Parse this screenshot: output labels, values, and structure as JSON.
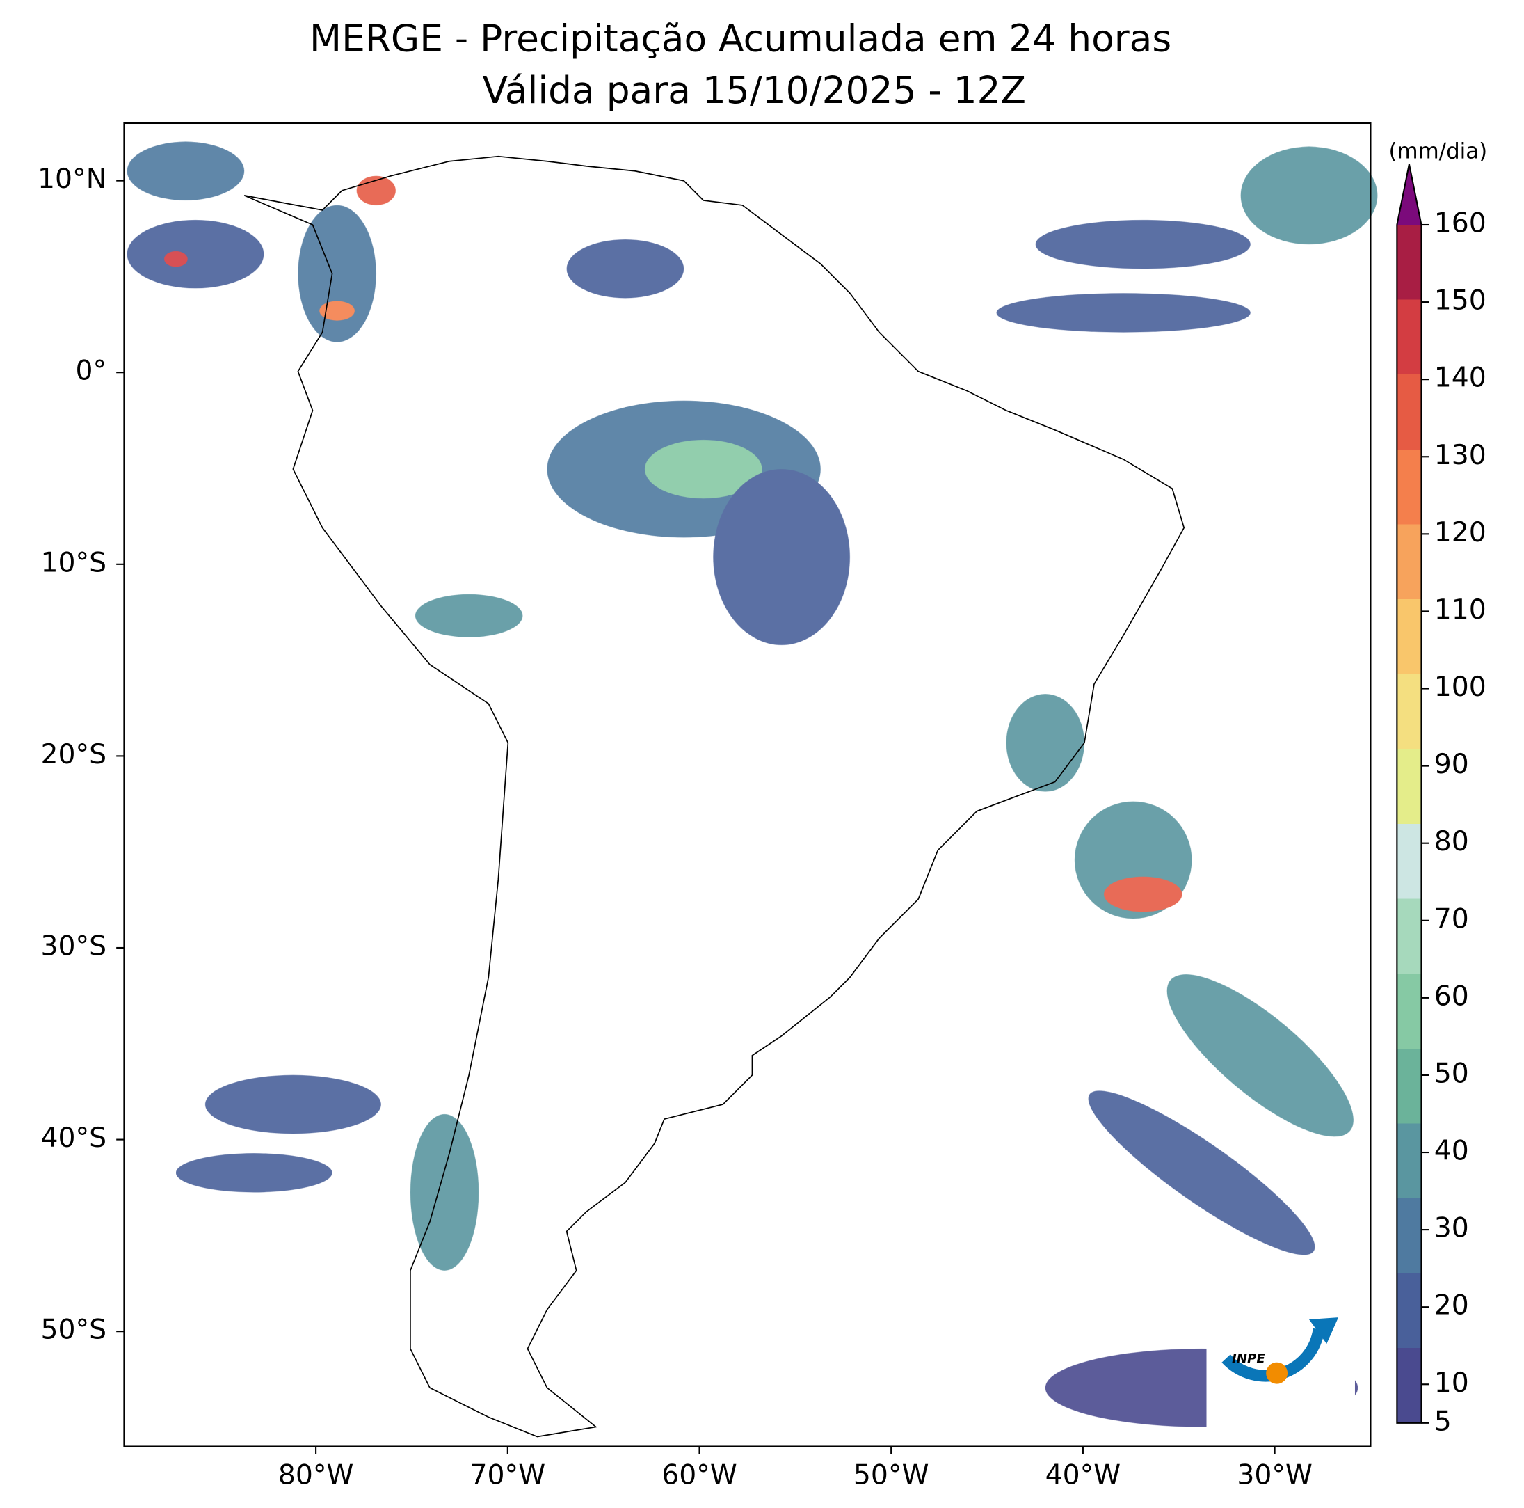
{
  "title": "MERGE - Precipitação Acumulada em 24 horas",
  "subtitle": "Válida para 15/10/2025 - 12Z",
  "map": {
    "xlim": [
      -90,
      -25
    ],
    "ylim": [
      -56,
      13
    ],
    "xticks": [
      {
        "value": -80,
        "label": "80°W"
      },
      {
        "value": -70,
        "label": "70°W"
      },
      {
        "value": -60,
        "label": "60°W"
      },
      {
        "value": -50,
        "label": "50°W"
      },
      {
        "value": -40,
        "label": "40°W"
      },
      {
        "value": -30,
        "label": "30°W"
      }
    ],
    "yticks": [
      {
        "value": 10,
        "label": "10°N"
      },
      {
        "value": 0,
        "label": "0°"
      },
      {
        "value": -10,
        "label": "10°S"
      },
      {
        "value": -20,
        "label": "20°S"
      },
      {
        "value": -30,
        "label": "30°S"
      },
      {
        "value": -40,
        "label": "40°S"
      },
      {
        "value": -50,
        "label": "50°S"
      }
    ]
  },
  "colorbar": {
    "label": "(mm/dia)",
    "lim": [
      5,
      160
    ],
    "ticks": [
      5,
      10,
      20,
      30,
      40,
      50,
      60,
      70,
      80,
      90,
      100,
      110,
      120,
      130,
      140,
      150,
      160
    ],
    "colors": [
      "#4a4a8f",
      "#49609a",
      "#4f7aa0",
      "#5a96a0",
      "#6bb39a",
      "#86c9a4",
      "#a6d9bc",
      "#cde6e3",
      "#e4ed8a",
      "#f4df80",
      "#f9c66b",
      "#f7a35c",
      "#f47f4c",
      "#e65b44",
      "#d33d42",
      "#a81e44"
    ],
    "extend_color": "#7b0a7b"
  },
  "logo": {
    "text": "INPE"
  }
}
